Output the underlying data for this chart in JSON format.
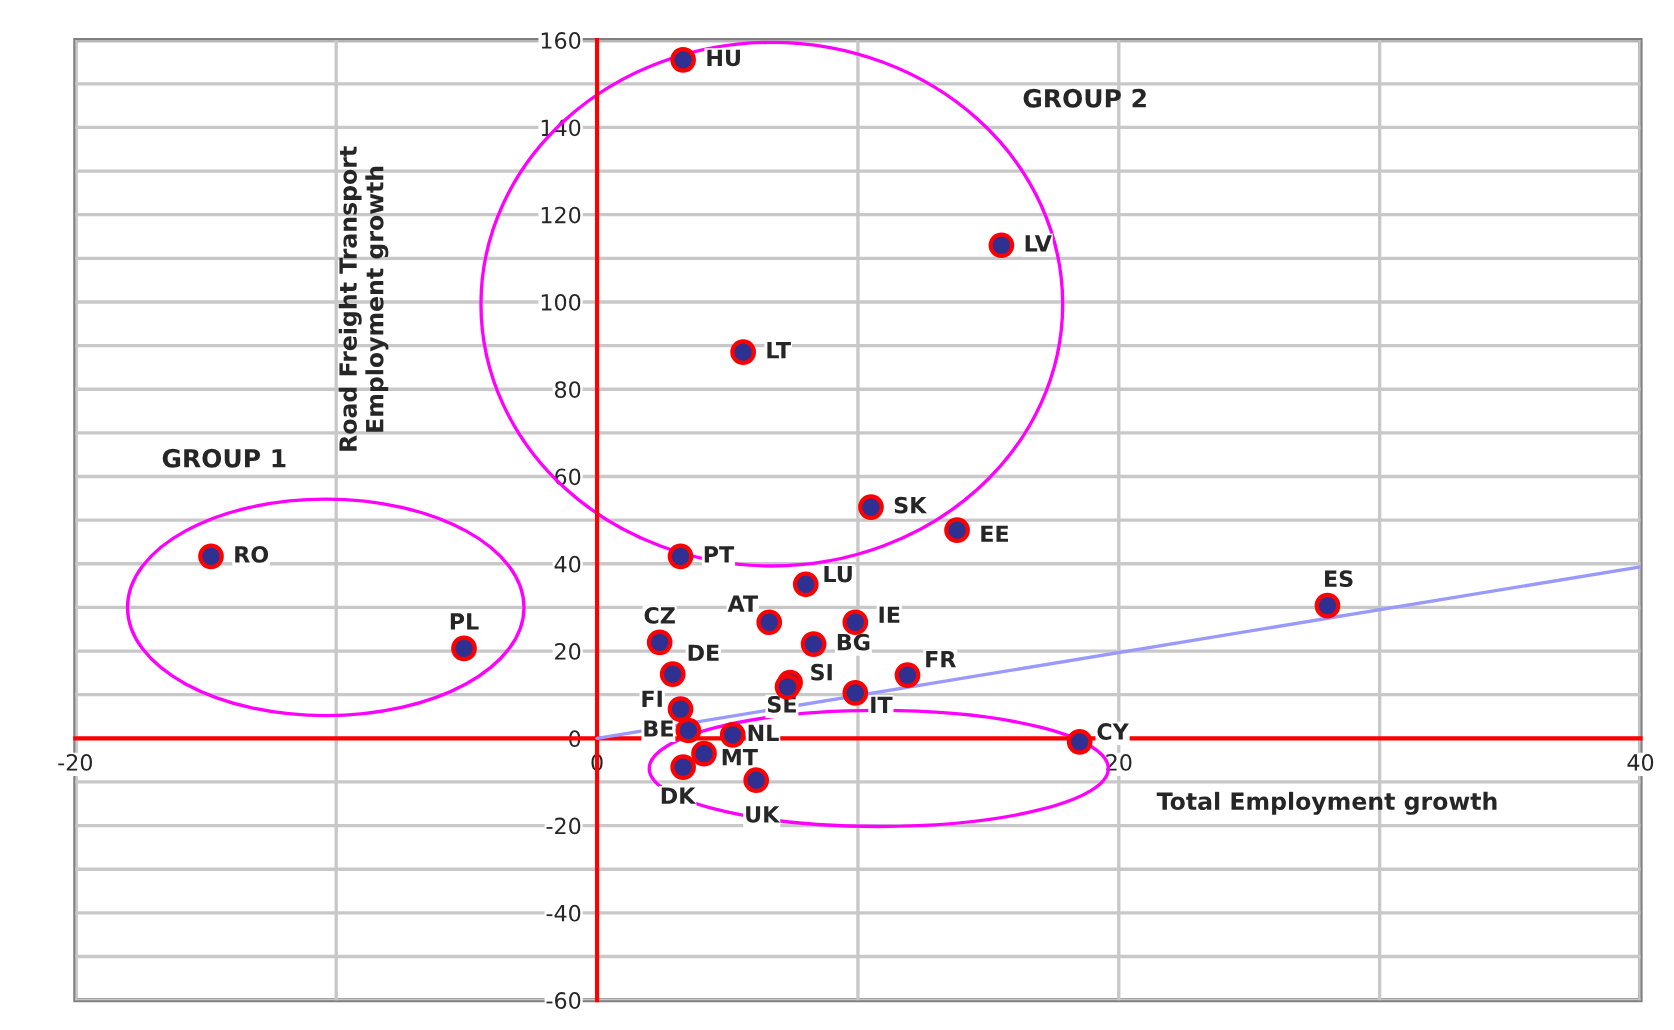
{
  "chart_data": {
    "type": "scatter",
    "xlabel": "Total Employment growth",
    "ylabel": "Road Freight Transport\nEmployment growth",
    "x": [
      3.3,
      15.5,
      5.6,
      10.5,
      13.8,
      -14.8,
      -5.1,
      3.2,
      8.0,
      6.6,
      9.9,
      2.4,
      8.3,
      2.9,
      7.4,
      7.3,
      11.9,
      9.9,
      3.2,
      3.5,
      5.2,
      4.1,
      3.3,
      6.1,
      18.5,
      28.0
    ],
    "series": [
      {
        "color": "#2e3192",
        "marker": "circle",
        "values": [
          155.5,
          113,
          88.5,
          53,
          47.7,
          41.7,
          20.6,
          41.7,
          35.3,
          26.6,
          26.6,
          22,
          21.6,
          14.7,
          12.8,
          11.8,
          14.5,
          10.4,
          6.7,
          1.8,
          0.8,
          -3.5,
          -6.6,
          -9.6,
          -0.8,
          30.4
        ]
      },
      {
        "type": "line",
        "color": "#9999ff",
        "x": [
          0,
          40
        ],
        "values": [
          0,
          39.3
        ]
      }
    ],
    "xlim": [
      -20,
      40
    ],
    "ylim": [
      -60,
      160
    ],
    "xticks": [
      -20,
      {
        "value": -10,
        "label": null
      },
      0,
      {
        "value": 10,
        "label": null
      },
      20,
      {
        "value": 30,
        "label": null
      },
      40
    ],
    "yticks": [
      -60,
      {
        "value": -50,
        "label": null
      },
      -40,
      {
        "value": -30,
        "label": null
      },
      -20,
      {
        "value": -10,
        "label": null
      },
      0,
      {
        "value": 10,
        "label": null
      },
      20,
      {
        "value": 30,
        "label": null
      },
      40,
      {
        "value": 50,
        "label": null
      },
      60,
      {
        "value": 70,
        "label": null
      },
      80,
      {
        "value": 90,
        "label": null
      },
      100,
      {
        "value": 110,
        "label": null
      },
      120,
      {
        "value": 130,
        "label": null
      },
      140,
      {
        "value": 150,
        "label": null
      },
      160
    ],
    "grid": true,
    "annotations": [
      "GROUP 1",
      "GROUP 2",
      {
        "text": "HU",
        "x": 3.3,
        "y": 155.5
      },
      {
        "text": "LV",
        "x": 15.5,
        "y": 113
      },
      {
        "text": "LT",
        "x": 5.6,
        "y": 88.5
      },
      {
        "text": "SK",
        "x": 10.5,
        "y": 53
      },
      {
        "text": "EE",
        "x": 13.8,
        "y": 47.7
      },
      {
        "text": "RO",
        "x": -14.8,
        "y": 41.7
      },
      {
        "text": "PL",
        "x": -5.1,
        "y": 20.6
      },
      {
        "text": "PT",
        "x": 3.2,
        "y": 41.7
      },
      {
        "text": "LU",
        "x": 8.0,
        "y": 35.3
      },
      {
        "text": "AT",
        "x": 6.6,
        "y": 26.6
      },
      {
        "text": "IE",
        "x": 9.9,
        "y": 26.6
      },
      {
        "text": "CZ",
        "x": 2.4,
        "y": 22
      },
      {
        "text": "BG",
        "x": 8.3,
        "y": 21.6
      },
      {
        "text": "DE",
        "x": 2.9,
        "y": 14.7
      },
      {
        "text": "SI",
        "x": 7.4,
        "y": 12.8
      },
      {
        "text": "SE",
        "x": 7.3,
        "y": 11.8
      },
      {
        "text": "FR",
        "x": 11.9,
        "y": 14.5
      },
      {
        "text": "IT",
        "x": 9.9,
        "y": 10.4
      },
      {
        "text": "FI",
        "x": 3.2,
        "y": 6.7
      },
      {
        "text": "BE",
        "x": 3.5,
        "y": 1.8
      },
      {
        "text": "NL",
        "x": 5.2,
        "y": 0.8
      },
      {
        "text": "MT",
        "x": 4.1,
        "y": -3.5
      },
      {
        "text": "DK",
        "x": 3.3,
        "y": -6.6
      },
      {
        "text": "UK",
        "x": 6.1,
        "y": -9.6
      },
      {
        "text": "CY",
        "x": 18.5,
        "y": -0.8
      },
      {
        "text": "ES",
        "x": 28.0,
        "y": 30.4
      }
    ]
  }
}
